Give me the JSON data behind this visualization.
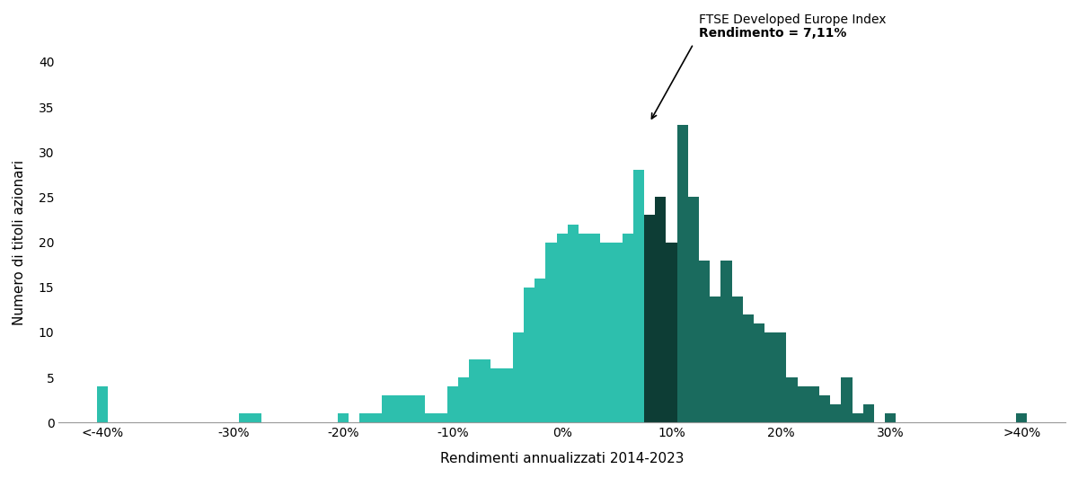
{
  "title": "",
  "xlabel": "Rendimenti annualizzati 2014-2023",
  "ylabel": "Numero di titoli azionari",
  "background_color": "#ffffff",
  "benchmark_value": 7.11,
  "benchmark_label_line1": "FTSE Developed Europe Index",
  "benchmark_label_line2": "Rendimento = 7,11%",
  "bar_width": 1.0,
  "bin_centers": [
    -42,
    -39,
    -38,
    -37,
    -36,
    -35,
    -34,
    -33,
    -32,
    -31,
    -30,
    -29,
    -28,
    -27,
    -26,
    -25,
    -24,
    -23,
    -22,
    -21,
    -20,
    -19,
    -18,
    -17,
    -16,
    -15,
    -14,
    -13,
    -12,
    -11,
    -10,
    -9,
    -8,
    -7,
    -6,
    -5,
    -4,
    -3,
    -2,
    -1,
    0,
    1,
    2,
    3,
    4,
    5,
    6,
    7,
    8,
    9,
    10,
    11,
    12,
    13,
    14,
    15,
    16,
    17,
    18,
    19,
    20,
    21,
    22,
    23,
    24,
    25,
    26,
    27,
    28,
    29,
    30,
    42
  ],
  "heights": [
    4,
    0,
    0,
    0,
    0,
    0,
    0,
    0,
    0,
    0,
    0,
    1,
    1,
    0,
    0,
    0,
    0,
    0,
    0,
    0,
    1,
    0,
    1,
    1,
    3,
    3,
    3,
    3,
    1,
    1,
    4,
    5,
    7,
    7,
    6,
    6,
    10,
    15,
    16,
    20,
    21,
    22,
    21,
    21,
    20,
    20,
    21,
    28,
    23,
    25,
    20,
    33,
    25,
    18,
    14,
    18,
    14,
    12,
    11,
    10,
    10,
    5,
    4,
    4,
    3,
    2,
    5,
    1,
    2,
    0,
    1,
    1
  ],
  "color_below": "#2dbfad",
  "color_above": "#1a6b5e",
  "color_benchmark": "#0d3d35",
  "ylim": [
    0,
    40
  ],
  "yticks": [
    0,
    5,
    10,
    15,
    20,
    25,
    30,
    35,
    40
  ],
  "xtick_labels": [
    "<-40%",
    "-30%",
    "-20%",
    "-10%",
    "0%",
    "10%",
    "20%",
    "30%",
    ">40%"
  ],
  "xtick_positions": [
    -42,
    -30,
    -20,
    -10,
    0,
    10,
    20,
    30,
    42
  ]
}
